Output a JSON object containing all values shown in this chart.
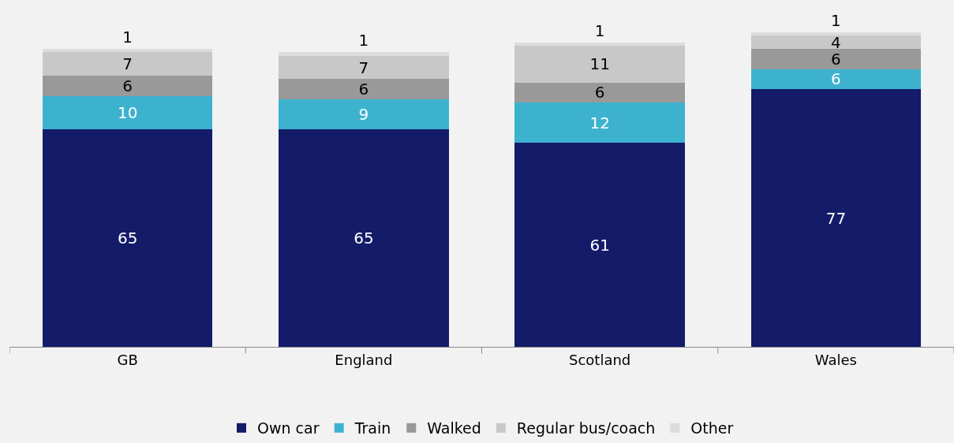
{
  "chart_data": {
    "type": "bar",
    "stacked": true,
    "categories": [
      "GB",
      "England",
      "Scotland",
      "Wales"
    ],
    "series": [
      {
        "name": "Own car",
        "color": "#141b69",
        "values": [
          65,
          65,
          61,
          77
        ]
      },
      {
        "name": "Train",
        "color": "#3db2cf",
        "values": [
          10,
          9,
          12,
          6
        ]
      },
      {
        "name": "Walked",
        "color": "#999999",
        "values": [
          6,
          6,
          6,
          6
        ]
      },
      {
        "name": "Regular bus/coach",
        "color": "#c8c8c8",
        "values": [
          7,
          7,
          11,
          4
        ]
      },
      {
        "name": "Other",
        "color": "#dcdcdc",
        "values": [
          1,
          1,
          1,
          1
        ]
      }
    ],
    "data_labels": true,
    "grid": false,
    "legend": "bottom",
    "tick_labels": "x"
  }
}
